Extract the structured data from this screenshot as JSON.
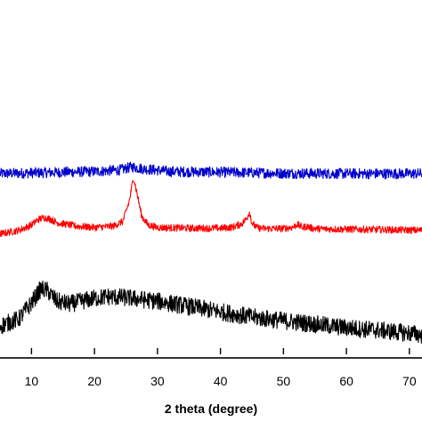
{
  "chart_data": {
    "type": "line",
    "title": "",
    "xlabel": "2 theta (degree)",
    "ylabel": "",
    "xlim": [
      5,
      72
    ],
    "ylim": [
      0,
      100
    ],
    "x_ticks": [
      10,
      20,
      30,
      40,
      50,
      60,
      70
    ],
    "x_tick_labels": [
      "10",
      "20",
      "30",
      "40",
      "50",
      "60",
      "70"
    ],
    "grid": false,
    "legend": "none",
    "series": [
      {
        "color": "#0000cc",
        "noise": 1.5,
        "x": [
          5,
          10,
          15,
          20,
          24,
          26,
          28,
          32,
          40,
          50,
          60,
          72
        ],
        "y": [
          51.0,
          51.2,
          51.4,
          51.6,
          52.0,
          52.9,
          52.3,
          51.6,
          51.4,
          51.1,
          51.0,
          51.0
        ]
      },
      {
        "color": "#ff0000",
        "noise": 1.0,
        "x": [
          5,
          8,
          10,
          11,
          12,
          13,
          14,
          17,
          20,
          23,
          24.5,
          25.5,
          26.2,
          26.8,
          27.5,
          28.5,
          30,
          35,
          40,
          42,
          43.5,
          44.2,
          44.6,
          45,
          45.8,
          47,
          50,
          51.5,
          52.2,
          53,
          53.8,
          54.5,
          56,
          60,
          65,
          72
        ],
        "y": [
          34.0,
          35.0,
          36.5,
          38.0,
          38.6,
          38.2,
          37.2,
          36.2,
          35.8,
          36.2,
          37.5,
          43.0,
          50.0,
          45.0,
          39.0,
          36.5,
          35.8,
          35.6,
          35.6,
          35.9,
          37.0,
          38.5,
          40.2,
          37.0,
          35.7,
          35.5,
          35.5,
          35.9,
          36.7,
          35.8,
          36.1,
          35.6,
          35.4,
          35.3,
          35.2,
          35.0
        ]
      },
      {
        "color": "#000000",
        "noise": 2.5,
        "x": [
          5,
          8,
          10,
          11.5,
          12.5,
          14,
          16,
          18,
          20,
          22,
          25,
          30,
          35,
          40,
          45,
          50,
          55,
          60,
          65,
          70,
          72
        ],
        "y": [
          8.0,
          10.0,
          14.5,
          18.5,
          18.0,
          15.0,
          14.2,
          15.0,
          15.8,
          16.3,
          16.0,
          15.0,
          13.5,
          12.0,
          10.5,
          9.5,
          8.5,
          7.5,
          6.8,
          6.0,
          5.5
        ]
      }
    ]
  }
}
